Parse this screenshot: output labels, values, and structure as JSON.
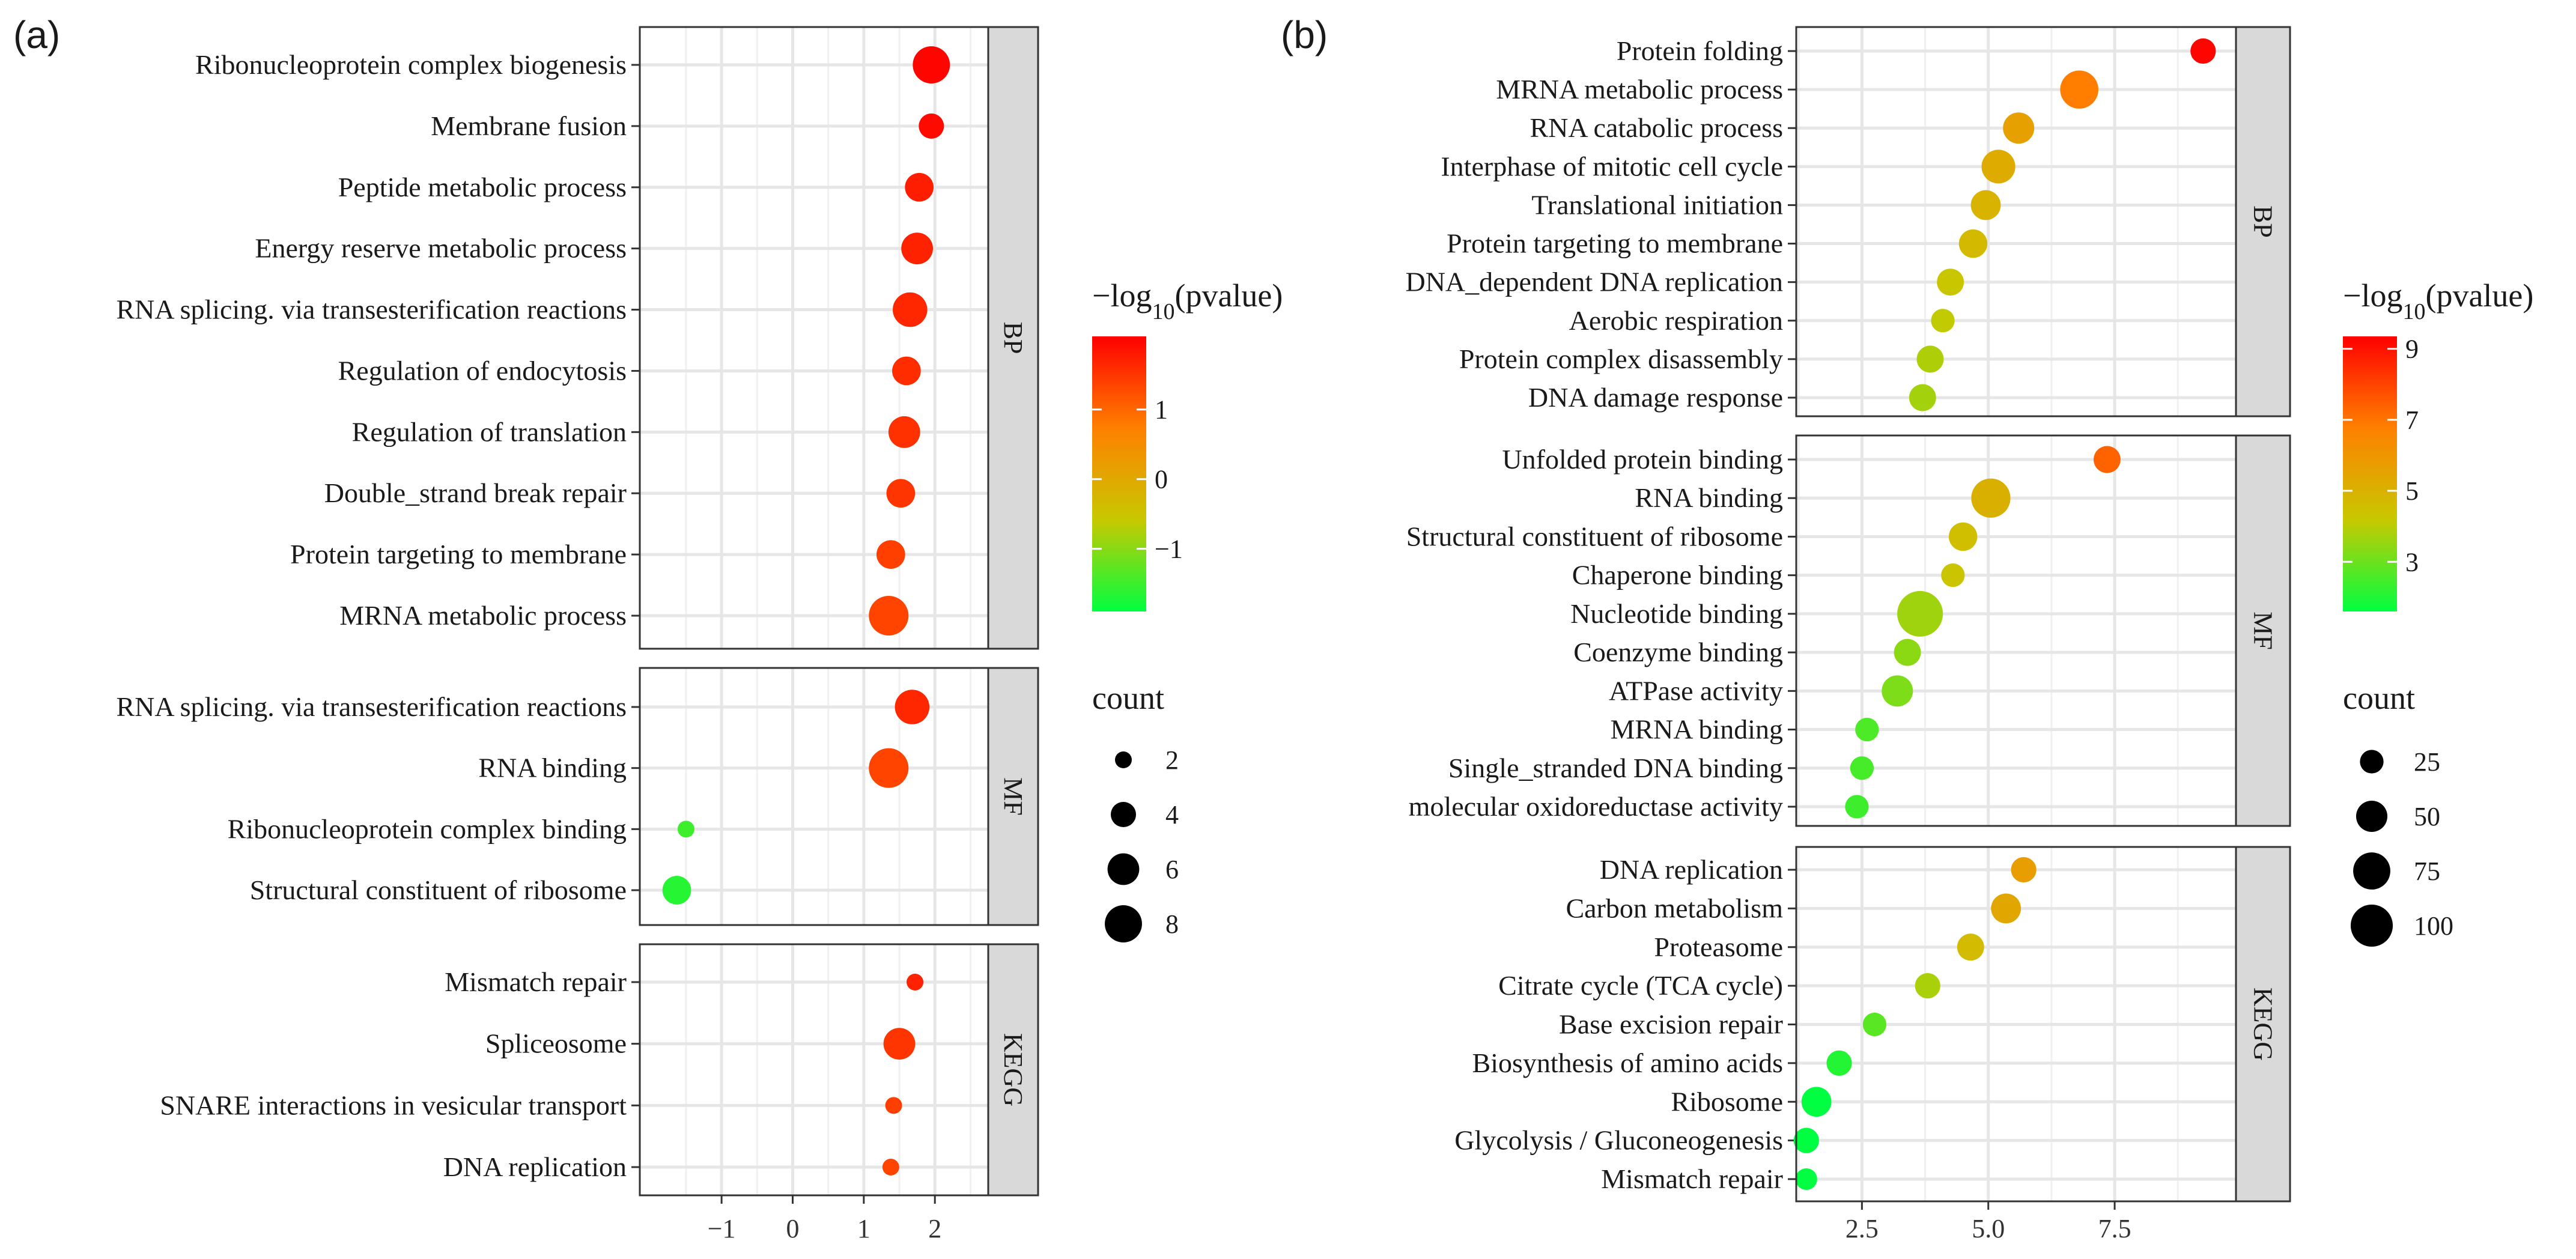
{
  "chart_data": [
    {
      "type": "scatter",
      "panel_label": "(a)",
      "x_ticks": [
        "−1",
        "0",
        "1",
        "2"
      ],
      "x_tick_values": [
        -1,
        0,
        1,
        2
      ],
      "xlim": [
        -2.15,
        2.75
      ],
      "facets": [
        {
          "label": "BP",
          "terms": [
            {
              "term": "Ribonucleoprotein complex biogenesis",
              "x": 1.95,
              "count": 8,
              "color_value": 2.0
            },
            {
              "term": "Membrane fusion",
              "x": 1.95,
              "count": 4,
              "color_value": 1.95
            },
            {
              "term": "Peptide metabolic process",
              "x": 1.78,
              "count": 5,
              "color_value": 1.75
            },
            {
              "term": "Energy reserve metabolic process",
              "x": 1.75,
              "count": 6,
              "color_value": 1.7
            },
            {
              "term": "RNA splicing. via transesterification reactions",
              "x": 1.65,
              "count": 7,
              "color_value": 1.65
            },
            {
              "term": "Regulation of endocytosis",
              "x": 1.6,
              "count": 5,
              "color_value": 1.6
            },
            {
              "term": "Regulation of translation",
              "x": 1.57,
              "count": 6,
              "color_value": 1.55
            },
            {
              "term": "Double_strand break repair",
              "x": 1.52,
              "count": 5,
              "color_value": 1.5
            },
            {
              "term": "Protein targeting to membrane",
              "x": 1.38,
              "count": 5,
              "color_value": 1.4
            },
            {
              "term": "MRNA metabolic process",
              "x": 1.35,
              "count": 9,
              "color_value": 1.35
            }
          ]
        },
        {
          "label": "MF",
          "terms": [
            {
              "term": "RNA splicing. via transesterification reactions",
              "x": 1.68,
              "count": 7,
              "color_value": 1.65
            },
            {
              "term": "RNA binding",
              "x": 1.35,
              "count": 9,
              "color_value": 1.35
            },
            {
              "term": "Ribonucleoprotein complex binding",
              "x": -1.5,
              "count": 2,
              "color_value": -1.5
            },
            {
              "term": "Structural constituent of ribosome",
              "x": -1.63,
              "count": 5,
              "color_value": -1.65
            }
          ]
        },
        {
          "label": "KEGG",
          "terms": [
            {
              "term": "Mismatch repair",
              "x": 1.72,
              "count": 2,
              "color_value": 1.7
            },
            {
              "term": "Spliceosome",
              "x": 1.5,
              "count": 6,
              "color_value": 1.5
            },
            {
              "term": "SNARE interactions in vesicular transport",
              "x": 1.42,
              "count": 2,
              "color_value": 1.4
            },
            {
              "term": "DNA replication",
              "x": 1.38,
              "count": 2,
              "color_value": 1.35
            }
          ]
        }
      ],
      "color_legend": {
        "title_base": "−log",
        "title_sub": "10",
        "title_rest": "(pvalue)",
        "ticks": [
          "1",
          "0",
          "−1"
        ],
        "tick_values": [
          1,
          0,
          -1
        ],
        "range": [
          -1.9,
          2.05
        ],
        "colors": [
          "#00ff40",
          "#c8c800",
          "#ff8000",
          "#ff0000"
        ]
      },
      "size_legend": {
        "title": "count",
        "labels": [
          "2",
          "4",
          "6",
          "8"
        ],
        "values": [
          2,
          4,
          6,
          8
        ],
        "range": [
          2,
          9
        ]
      }
    },
    {
      "type": "scatter",
      "panel_label": "(b)",
      "x_ticks": [
        "2.5",
        "5.0",
        "7.5"
      ],
      "x_tick_values": [
        2.5,
        5.0,
        7.5
      ],
      "xlim": [
        1.2,
        9.9
      ],
      "facets": [
        {
          "label": "BP",
          "terms": [
            {
              "term": "Protein folding",
              "x": 9.25,
              "count": 30,
              "color_value": 9.25
            },
            {
              "term": "MRNA metabolic process",
              "x": 6.8,
              "count": 80,
              "color_value": 6.8
            },
            {
              "term": "RNA catabolic process",
              "x": 5.6,
              "count": 50,
              "color_value": 5.6
            },
            {
              "term": "Interphase of mitotic cell cycle",
              "x": 5.2,
              "count": 60,
              "color_value": 5.2
            },
            {
              "term": "Translational initiation",
              "x": 4.95,
              "count": 45,
              "color_value": 4.95
            },
            {
              "term": "Protein targeting to membrane",
              "x": 4.7,
              "count": 40,
              "color_value": 4.7
            },
            {
              "term": "DNA_dependent DNA replication",
              "x": 4.25,
              "count": 35,
              "color_value": 4.25
            },
            {
              "term": "Aerobic respiration",
              "x": 4.1,
              "count": 25,
              "color_value": 4.1
            },
            {
              "term": "Protein complex disassembly",
              "x": 3.85,
              "count": 35,
              "color_value": 3.85
            },
            {
              "term": "DNA damage response",
              "x": 3.7,
              "count": 35,
              "color_value": 3.7
            }
          ]
        },
        {
          "label": "MF",
          "terms": [
            {
              "term": "Unfolded protein binding",
              "x": 7.35,
              "count": 35,
              "color_value": 7.35
            },
            {
              "term": "RNA binding",
              "x": 5.05,
              "count": 85,
              "color_value": 5.05
            },
            {
              "term": "Structural constituent of ribosome",
              "x": 4.5,
              "count": 40,
              "color_value": 4.5
            },
            {
              "term": "Chaperone binding",
              "x": 4.3,
              "count": 25,
              "color_value": 4.3
            },
            {
              "term": "Nucleotide binding",
              "x": 3.65,
              "count": 120,
              "color_value": 3.65
            },
            {
              "term": "Coenzyme binding",
              "x": 3.4,
              "count": 35,
              "color_value": 3.4
            },
            {
              "term": "ATPase activity",
              "x": 3.2,
              "count": 50,
              "color_value": 3.2
            },
            {
              "term": "MRNA binding",
              "x": 2.6,
              "count": 25,
              "color_value": 2.6
            },
            {
              "term": "Single_stranded DNA binding",
              "x": 2.5,
              "count": 25,
              "color_value": 2.5
            },
            {
              "term": "molecular oxidoreductase activity",
              "x": 2.4,
              "count": 25,
              "color_value": 2.4
            }
          ]
        },
        {
          "label": "KEGG",
          "terms": [
            {
              "term": "DNA replication",
              "x": 5.7,
              "count": 30,
              "color_value": 5.7
            },
            {
              "term": "Carbon metabolism",
              "x": 5.35,
              "count": 45,
              "color_value": 5.35
            },
            {
              "term": "Proteasome",
              "x": 4.65,
              "count": 35,
              "color_value": 4.65
            },
            {
              "term": "Citrate cycle (TCA cycle)",
              "x": 3.8,
              "count": 30,
              "color_value": 3.8
            },
            {
              "term": "Base excision repair",
              "x": 2.75,
              "count": 25,
              "color_value": 2.75
            },
            {
              "term": "Biosynthesis of amino acids",
              "x": 2.05,
              "count": 30,
              "color_value": 2.05
            },
            {
              "term": "Ribosome",
              "x": 1.6,
              "count": 45,
              "color_value": 1.6
            },
            {
              "term": "Glycolysis / Gluconeogenesis",
              "x": 1.4,
              "count": 30,
              "color_value": 1.4
            },
            {
              "term": "Mismatch repair",
              "x": 1.4,
              "count": 20,
              "color_value": 1.4
            }
          ]
        }
      ],
      "color_legend": {
        "title_base": "−log",
        "title_sub": "10",
        "title_rest": "(pvalue)",
        "ticks": [
          "9",
          "7",
          "5",
          "3"
        ],
        "tick_values": [
          9,
          7,
          5,
          3
        ],
        "range": [
          1.6,
          9.35
        ],
        "colors": [
          "#00ff40",
          "#c8c800",
          "#ff8000",
          "#ff0000"
        ]
      },
      "size_legend": {
        "title": "count",
        "labels": [
          "25",
          "50",
          "75",
          "100"
        ],
        "values": [
          25,
          50,
          75,
          100
        ],
        "range": [
          20,
          120
        ]
      }
    }
  ]
}
